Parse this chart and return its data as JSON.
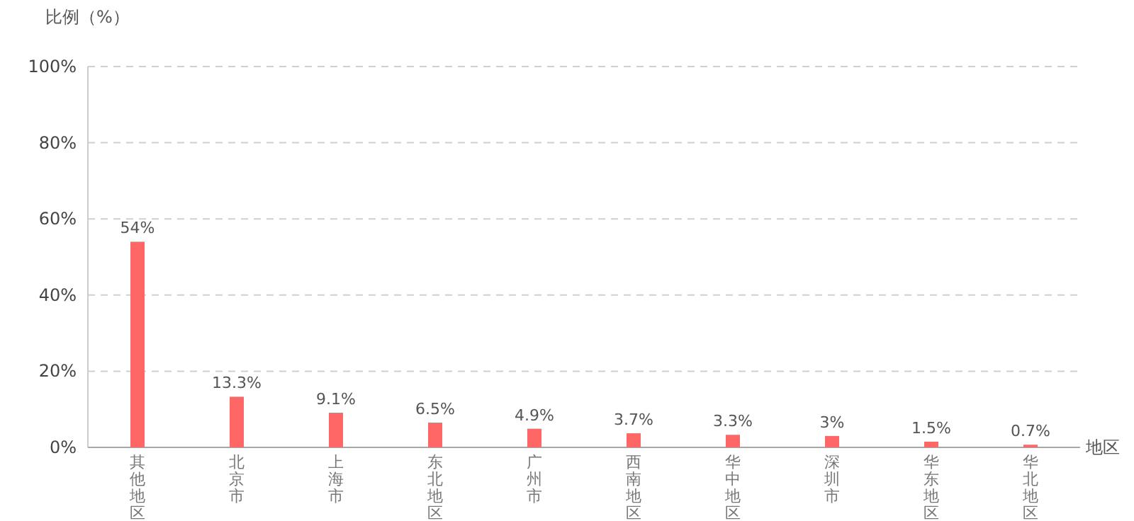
{
  "chart_data": {
    "type": "bar",
    "ylabel": "比例（%）",
    "xlabel": "地区",
    "categories": [
      "其他地区",
      "北京市",
      "上海市",
      "东北地区",
      "广州市",
      "西南地区",
      "华中地区",
      "深圳市",
      "华东地区",
      "华北地区"
    ],
    "values": [
      54,
      13.3,
      9.1,
      6.5,
      4.9,
      3.7,
      3.3,
      3,
      1.5,
      0.7
    ],
    "value_labels": [
      "54%",
      "13.3%",
      "9.1%",
      "6.5%",
      "4.9%",
      "3.7%",
      "3.3%",
      "3%",
      "1.5%",
      "0.7%"
    ],
    "color": "#ff6666",
    "ylim": [
      0,
      100
    ],
    "yticks": [
      {
        "value": 0,
        "label": "0%"
      },
      {
        "value": 20,
        "label": "20%"
      },
      {
        "value": 40,
        "label": "40%"
      },
      {
        "value": 60,
        "label": "60%"
      },
      {
        "value": 80,
        "label": "80%"
      },
      {
        "value": 100,
        "label": "100%"
      }
    ],
    "grid": "y"
  }
}
